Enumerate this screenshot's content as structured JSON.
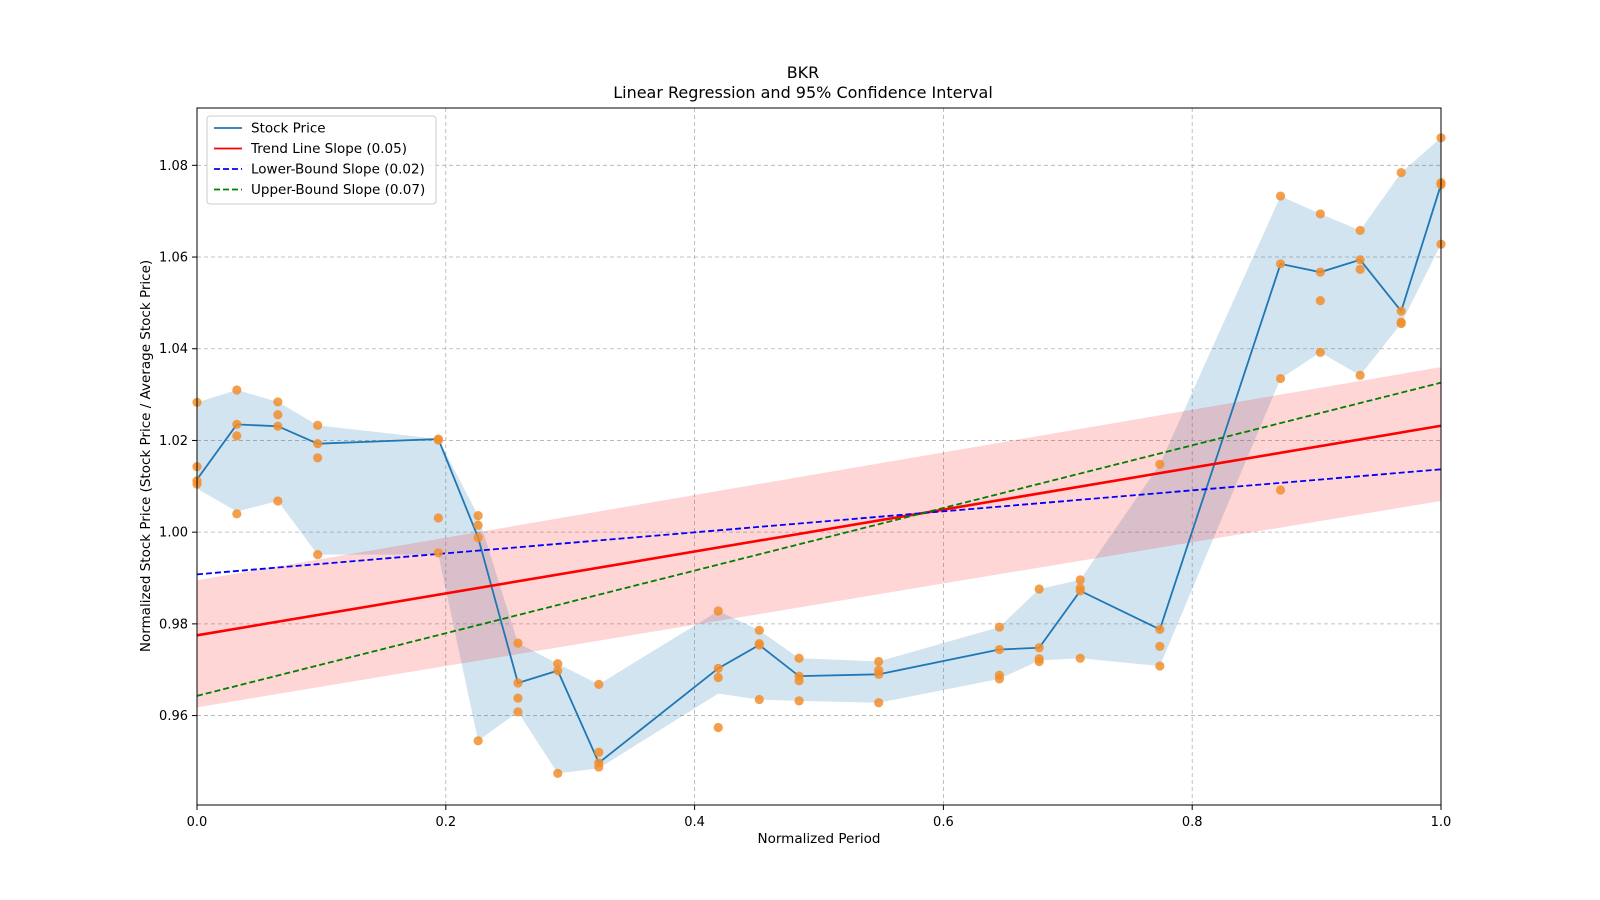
{
  "chart_data": {
    "type": "line",
    "title": "BKR",
    "subtitle": "Linear Regression and 95% Confidence Interval",
    "xlabel": "Normalized Period",
    "ylabel": "Normalized Stock Price (Stock Price / Average Stock Price)",
    "xlim": [
      0,
      1
    ],
    "ylim": [
      0.9405,
      1.0925
    ],
    "grid": true,
    "legend_position": "top-left",
    "x_ticks": [
      "0.0",
      "0.2",
      "0.4",
      "0.6",
      "0.8",
      "1.0"
    ],
    "y_ticks": [
      "0.96",
      "0.98",
      "1.00",
      "1.02",
      "1.04",
      "1.06",
      "1.08"
    ],
    "legend": [
      {
        "label": "Stock Price",
        "color": "#1f77b4",
        "style": "solid"
      },
      {
        "label": "Trend Line Slope (0.05)",
        "color": "#ff0000",
        "style": "solid"
      },
      {
        "label": "Lower-Bound Slope (0.02)",
        "color": "#0000ff",
        "style": "dashed"
      },
      {
        "label": "Upper-Bound Slope (0.07)",
        "color": "#008000",
        "style": "dashed"
      }
    ],
    "series": [
      {
        "name": "Stock Price",
        "color": "#1f77b4",
        "x": [
          0.0,
          0.032,
          0.065,
          0.097,
          0.194,
          0.226,
          0.258,
          0.29,
          0.323,
          0.419,
          0.452,
          0.484,
          0.548,
          0.645,
          0.677,
          0.71,
          0.774,
          0.871,
          0.903,
          0.935,
          0.968,
          1.0
        ],
        "y": [
          1.0115,
          1.0235,
          1.0231,
          1.0193,
          1.0203,
          0.9988,
          0.9671,
          0.9698,
          0.9497,
          0.9703,
          0.9754,
          0.9686,
          0.969,
          0.9744,
          0.9748,
          0.9872,
          0.9788,
          1.0585,
          1.0567,
          1.0594,
          1.0482,
          1.0758
        ],
        "band_lower": [
          1.0095,
          1.0045,
          1.0068,
          0.9951,
          0.9951,
          0.9545,
          0.9608,
          0.9474,
          0.9485,
          0.9648,
          0.9635,
          0.9632,
          0.9628,
          0.968,
          0.972,
          0.9725,
          0.9708,
          1.0335,
          1.0392,
          1.0342,
          1.0455,
          1.0628
        ],
        "band_upper": [
          1.0283,
          1.031,
          1.0284,
          1.0233,
          1.0203,
          1.0036,
          0.9758,
          0.9713,
          0.9668,
          0.9828,
          0.9786,
          0.9725,
          0.9718,
          0.9793,
          0.9876,
          0.9896,
          1.0148,
          1.0733,
          1.0694,
          1.0658,
          1.0784,
          1.086
        ]
      },
      {
        "name": "Trend Line Slope (0.05)",
        "color": "#ff0000",
        "x": [
          0,
          1
        ],
        "y": [
          0.9775,
          1.0232
        ],
        "ci_lower": [
          0.9618,
          1.0068
        ],
        "ci_upper": [
          0.9895,
          1.036
        ]
      },
      {
        "name": "Lower-Bound Slope (0.02)",
        "color": "#0000ff",
        "x": [
          0,
          1
        ],
        "y": [
          0.9908,
          1.0137
        ]
      },
      {
        "name": "Upper-Bound Slope (0.07)",
        "color": "#008000",
        "x": [
          0,
          1
        ],
        "y": [
          0.9643,
          1.0326
        ]
      }
    ],
    "scatter": {
      "color": "#f28e2b",
      "points": [
        [
          0.0,
          1.0283
        ],
        [
          0.0,
          1.0143
        ],
        [
          0.0,
          1.0112
        ],
        [
          0.0,
          1.0105
        ],
        [
          0.032,
          1.031
        ],
        [
          0.032,
          1.0235
        ],
        [
          0.032,
          1.021
        ],
        [
          0.032,
          1.004
        ],
        [
          0.065,
          1.0284
        ],
        [
          0.065,
          1.0256
        ],
        [
          0.065,
          1.0231
        ],
        [
          0.065,
          1.0068
        ],
        [
          0.097,
          1.0233
        ],
        [
          0.097,
          1.0193
        ],
        [
          0.097,
          1.0162
        ],
        [
          0.097,
          0.9951
        ],
        [
          0.194,
          1.0203
        ],
        [
          0.194,
          1.0201
        ],
        [
          0.194,
          1.0031
        ],
        [
          0.194,
          0.9955
        ],
        [
          0.226,
          1.0036
        ],
        [
          0.226,
          1.0015
        ],
        [
          0.226,
          0.9988
        ],
        [
          0.226,
          0.9545
        ],
        [
          0.258,
          0.9758
        ],
        [
          0.258,
          0.9671
        ],
        [
          0.258,
          0.9638
        ],
        [
          0.258,
          0.9608
        ],
        [
          0.29,
          0.9713
        ],
        [
          0.29,
          0.9698
        ],
        [
          0.29,
          0.9474
        ],
        [
          0.323,
          0.9668
        ],
        [
          0.323,
          0.952
        ],
        [
          0.323,
          0.9497
        ],
        [
          0.323,
          0.9488
        ],
        [
          0.419,
          0.9828
        ],
        [
          0.419,
          0.9703
        ],
        [
          0.419,
          0.9683
        ],
        [
          0.419,
          0.9574
        ],
        [
          0.452,
          0.9786
        ],
        [
          0.452,
          0.9757
        ],
        [
          0.452,
          0.9754
        ],
        [
          0.452,
          0.9635
        ],
        [
          0.484,
          0.9725
        ],
        [
          0.484,
          0.9686
        ],
        [
          0.484,
          0.9676
        ],
        [
          0.484,
          0.9632
        ],
        [
          0.548,
          0.9718
        ],
        [
          0.548,
          0.9699
        ],
        [
          0.548,
          0.969
        ],
        [
          0.548,
          0.9628
        ],
        [
          0.645,
          0.9793
        ],
        [
          0.645,
          0.9744
        ],
        [
          0.645,
          0.9688
        ],
        [
          0.645,
          0.968
        ],
        [
          0.677,
          0.9876
        ],
        [
          0.677,
          0.9748
        ],
        [
          0.677,
          0.9724
        ],
        [
          0.677,
          0.9718
        ],
        [
          0.71,
          0.9896
        ],
        [
          0.71,
          0.9878
        ],
        [
          0.71,
          0.9872
        ],
        [
          0.71,
          0.9725
        ],
        [
          0.774,
          1.0148
        ],
        [
          0.774,
          0.9788
        ],
        [
          0.774,
          0.9751
        ],
        [
          0.774,
          0.9708
        ],
        [
          0.871,
          1.0733
        ],
        [
          0.871,
          1.0585
        ],
        [
          0.871,
          1.0335
        ],
        [
          0.871,
          1.0092
        ],
        [
          0.903,
          1.0694
        ],
        [
          0.903,
          1.0567
        ],
        [
          0.903,
          1.0505
        ],
        [
          0.903,
          1.0392
        ],
        [
          0.935,
          1.0658
        ],
        [
          0.935,
          1.0594
        ],
        [
          0.935,
          1.0573
        ],
        [
          0.935,
          1.0342
        ],
        [
          0.968,
          1.0784
        ],
        [
          0.968,
          1.0482
        ],
        [
          0.968,
          1.0458
        ],
        [
          0.968,
          1.0455
        ],
        [
          1.0,
          1.086
        ],
        [
          1.0,
          1.0762
        ],
        [
          1.0,
          1.0758
        ],
        [
          1.0,
          1.0628
        ]
      ]
    }
  }
}
